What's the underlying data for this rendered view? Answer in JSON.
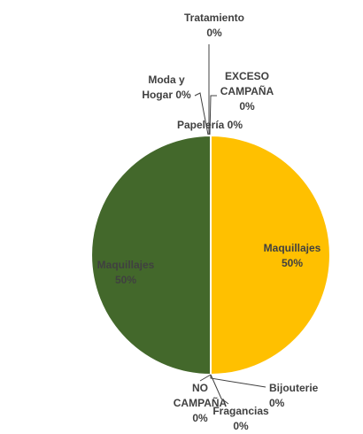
{
  "chart_data": {
    "type": "pie",
    "slices": [
      {
        "name": "Maquillajes",
        "value": 50,
        "label": [
          "Maquillajes",
          "50%"
        ],
        "color": "#FFC000"
      },
      {
        "name": "Bijouterie",
        "value": 0,
        "label": [
          "Bijouterie",
          "0%"
        ],
        "color": "#7F7F7F"
      },
      {
        "name": "Fragancias",
        "value": 0,
        "label": [
          "Fragancias",
          "0%"
        ],
        "color": "#5B9BD5"
      },
      {
        "name": "NO CAMPAÑA",
        "value": 0,
        "label": [
          "NO",
          "CAMPAÑA",
          "0%"
        ],
        "color": "#A5A5A5"
      },
      {
        "name": "Maquillajes",
        "value": 50,
        "label": [
          "Maquillajes",
          "50%"
        ],
        "color": "#43682B"
      },
      {
        "name": "Moda y Hogar",
        "value": 0,
        "label": [
          "Moda y",
          "Hogar 0%"
        ],
        "color": "#4472C4"
      },
      {
        "name": "Tratamiento",
        "value": 0,
        "label": [
          "Tratamiento",
          "0%"
        ],
        "color": "#70AD47"
      },
      {
        "name": "EXCESO CAMPAÑA",
        "value": 0,
        "label": [
          "EXCESO",
          "CAMPAÑA",
          "0%"
        ],
        "color": "#264478"
      },
      {
        "name": "Papelería",
        "value": 0,
        "label": [
          "Papelería 0%"
        ],
        "color": "#9E480E"
      }
    ],
    "label_color_inside_gold": "#404040",
    "label_color_inside_green": "#404040",
    "legend": "none"
  }
}
